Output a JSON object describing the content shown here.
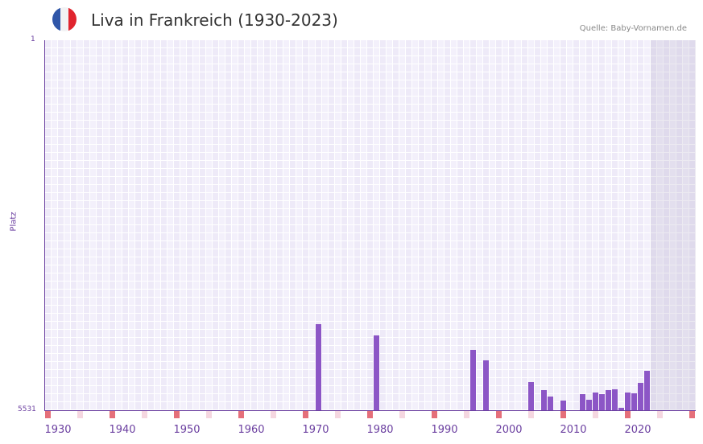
{
  "header": {
    "title": "Liva in Frankreich (1930-2023)",
    "source": "Quelle: Baby-Vornamen.de",
    "flag_icon": "france-flag-icon",
    "flag_colors": [
      "#2f56a8",
      "#f2f2f4",
      "#e0242e"
    ]
  },
  "colors": {
    "bar": "#8c56c6",
    "axis": "#6b3fa0",
    "grid_a": "#eeeaf8",
    "grid_b": "#f3f0fb",
    "marker_decade": "#e56f7a",
    "marker_mid": "#f5d7e0",
    "future_shade": "#e2dcec"
  },
  "axis": {
    "y_title": "Platz",
    "y_top": "1",
    "y_bottom": "5531",
    "x_start_year": 1928,
    "x_end_year": 2028,
    "x_ticks": [
      "1930",
      "1940",
      "1950",
      "1960",
      "1970",
      "1980",
      "1990",
      "2000",
      "2010",
      "2020"
    ]
  },
  "chart_data": {
    "type": "bar",
    "title": "Liva in Frankreich (1930-2023)",
    "subtitle": "Quelle: Baby-Vornamen.de",
    "xlabel": "",
    "ylabel": "Platz",
    "ylim": [
      5531,
      1
    ],
    "y_inverted": true,
    "grid": true,
    "legend": null,
    "x_tick_labels": [
      "1930",
      "1940",
      "1950",
      "1960",
      "1970",
      "1980",
      "1990",
      "2000",
      "2010",
      "2020"
    ],
    "categories": [
      1970,
      1979,
      1994,
      1996,
      2003,
      2005,
      2006,
      2008,
      2011,
      2012,
      2013,
      2014,
      2015,
      2016,
      2017,
      2018,
      2019,
      2020,
      2021
    ],
    "series": [
      {
        "name": "Platz",
        "values": [
          4245,
          4413,
          4629,
          4786,
          5110,
          5230,
          5327,
          5387,
          5291,
          5375,
          5267,
          5291,
          5230,
          5218,
          5495,
          5267,
          5279,
          5122,
          4942
        ]
      }
    ]
  }
}
